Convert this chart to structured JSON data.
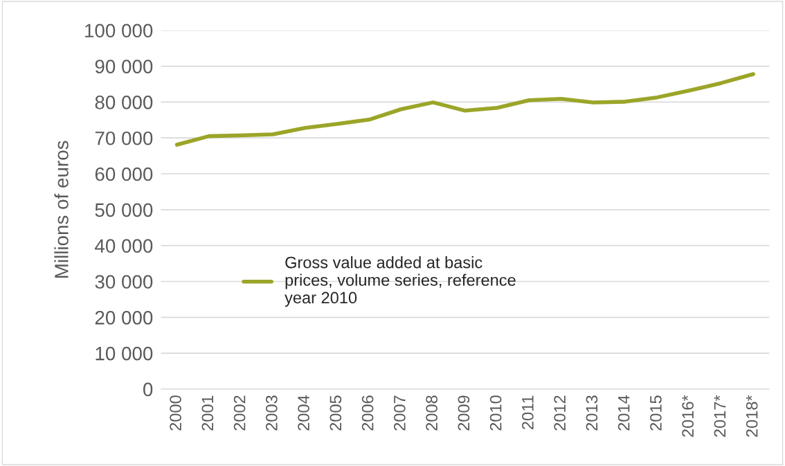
{
  "chart_data": {
    "type": "line",
    "ylabel": "Millions of euros",
    "categories": [
      "2000",
      "2001",
      "2002",
      "2003",
      "2004",
      "2005",
      "2006",
      "2007",
      "2008",
      "2009",
      "2010",
      "2011",
      "2012",
      "2013",
      "2014",
      "2015",
      "2016*",
      "2017*",
      "2018*"
    ],
    "series": [
      {
        "name": "Gross value added at basic\nprices, volume series, reference\nyear 2010",
        "color": "#9ba528",
        "values": [
          68100,
          70500,
          70700,
          71000,
          72800,
          73900,
          75100,
          78000,
          79900,
          77600,
          78400,
          80500,
          80900,
          79900,
          80100,
          81300,
          83200,
          85300,
          87800
        ]
      }
    ],
    "ylim": [
      0,
      100000
    ],
    "yticks": [
      {
        "value": 0,
        "label": "0"
      },
      {
        "value": 10000,
        "label": "10 000"
      },
      {
        "value": 20000,
        "label": "20 000"
      },
      {
        "value": 30000,
        "label": "30 000"
      },
      {
        "value": 40000,
        "label": "40 000"
      },
      {
        "value": 50000,
        "label": "50 000"
      },
      {
        "value": 60000,
        "label": "60 000"
      },
      {
        "value": 70000,
        "label": "70 000"
      },
      {
        "value": 80000,
        "label": "80 000"
      },
      {
        "value": 90000,
        "label": "90 000"
      },
      {
        "value": 100000,
        "label": "100 000"
      }
    ],
    "grid": "y",
    "legend": "center",
    "marker": "none",
    "line_style": "solid"
  }
}
